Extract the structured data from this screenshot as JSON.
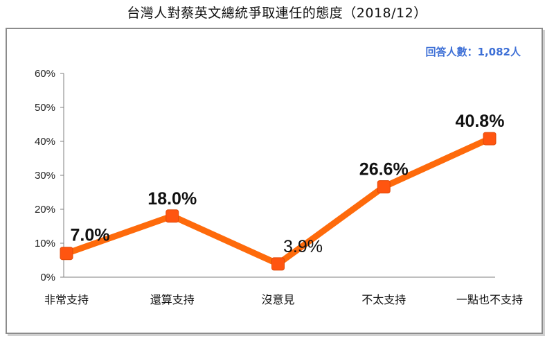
{
  "title": "台灣人對蔡英文總統爭取連任的態度（2018/12）",
  "respondents": "回答人數：1,082人",
  "colors": {
    "line": "#fe6a0b",
    "marker": "#ff5510",
    "axis": "#7f7f7f",
    "grid": "#bfbfbf",
    "respondents_text": "#3d6fd6"
  },
  "chart_data": {
    "type": "line",
    "categories": [
      "非常支持",
      "還算支持",
      "沒意見",
      "不太支持",
      "一點也不支持"
    ],
    "values": [
      7.0,
      18.0,
      3.9,
      26.6,
      40.8
    ],
    "data_labels": [
      "7.0%",
      "18.0%",
      "3.9%",
      "26.6%",
      "40.8%"
    ],
    "y_ticks": [
      "0%",
      "10%",
      "20%",
      "30%",
      "40%",
      "50%",
      "60%"
    ],
    "ylim": [
      0,
      60
    ],
    "grid": false,
    "legend": "none",
    "title": "台灣人對蔡英文總統爭取連任的態度（2018/12）"
  }
}
